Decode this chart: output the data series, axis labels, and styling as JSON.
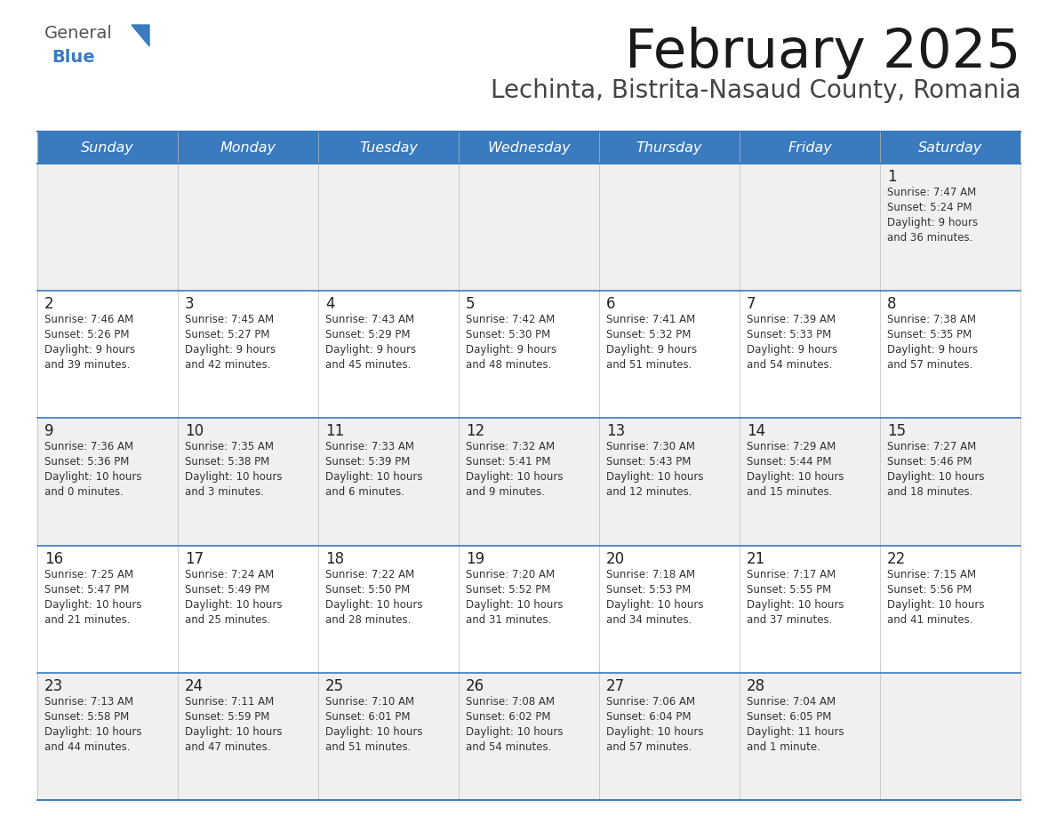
{
  "title": "February 2025",
  "subtitle": "Lechinta, Bistrita-Nasaud County, Romania",
  "header_color": "#3a7abf",
  "header_text_color": "#ffffff",
  "odd_row_color": "#f0f0f0",
  "even_row_color": "#ffffff",
  "border_color": "#3a7abf",
  "text_color": "#333333",
  "days_of_week": [
    "Sunday",
    "Monday",
    "Tuesday",
    "Wednesday",
    "Thursday",
    "Friday",
    "Saturday"
  ],
  "calendar_data": [
    [
      {
        "day": null,
        "sunrise": null,
        "sunset": null,
        "daylight": null
      },
      {
        "day": null,
        "sunrise": null,
        "sunset": null,
        "daylight": null
      },
      {
        "day": null,
        "sunrise": null,
        "sunset": null,
        "daylight": null
      },
      {
        "day": null,
        "sunrise": null,
        "sunset": null,
        "daylight": null
      },
      {
        "day": null,
        "sunrise": null,
        "sunset": null,
        "daylight": null
      },
      {
        "day": null,
        "sunrise": null,
        "sunset": null,
        "daylight": null
      },
      {
        "day": 1,
        "sunrise": "7:47 AM",
        "sunset": "5:24 PM",
        "daylight": "9 hours\nand 36 minutes."
      }
    ],
    [
      {
        "day": 2,
        "sunrise": "7:46 AM",
        "sunset": "5:26 PM",
        "daylight": "9 hours\nand 39 minutes."
      },
      {
        "day": 3,
        "sunrise": "7:45 AM",
        "sunset": "5:27 PM",
        "daylight": "9 hours\nand 42 minutes."
      },
      {
        "day": 4,
        "sunrise": "7:43 AM",
        "sunset": "5:29 PM",
        "daylight": "9 hours\nand 45 minutes."
      },
      {
        "day": 5,
        "sunrise": "7:42 AM",
        "sunset": "5:30 PM",
        "daylight": "9 hours\nand 48 minutes."
      },
      {
        "day": 6,
        "sunrise": "7:41 AM",
        "sunset": "5:32 PM",
        "daylight": "9 hours\nand 51 minutes."
      },
      {
        "day": 7,
        "sunrise": "7:39 AM",
        "sunset": "5:33 PM",
        "daylight": "9 hours\nand 54 minutes."
      },
      {
        "day": 8,
        "sunrise": "7:38 AM",
        "sunset": "5:35 PM",
        "daylight": "9 hours\nand 57 minutes."
      }
    ],
    [
      {
        "day": 9,
        "sunrise": "7:36 AM",
        "sunset": "5:36 PM",
        "daylight": "10 hours\nand 0 minutes."
      },
      {
        "day": 10,
        "sunrise": "7:35 AM",
        "sunset": "5:38 PM",
        "daylight": "10 hours\nand 3 minutes."
      },
      {
        "day": 11,
        "sunrise": "7:33 AM",
        "sunset": "5:39 PM",
        "daylight": "10 hours\nand 6 minutes."
      },
      {
        "day": 12,
        "sunrise": "7:32 AM",
        "sunset": "5:41 PM",
        "daylight": "10 hours\nand 9 minutes."
      },
      {
        "day": 13,
        "sunrise": "7:30 AM",
        "sunset": "5:43 PM",
        "daylight": "10 hours\nand 12 minutes."
      },
      {
        "day": 14,
        "sunrise": "7:29 AM",
        "sunset": "5:44 PM",
        "daylight": "10 hours\nand 15 minutes."
      },
      {
        "day": 15,
        "sunrise": "7:27 AM",
        "sunset": "5:46 PM",
        "daylight": "10 hours\nand 18 minutes."
      }
    ],
    [
      {
        "day": 16,
        "sunrise": "7:25 AM",
        "sunset": "5:47 PM",
        "daylight": "10 hours\nand 21 minutes."
      },
      {
        "day": 17,
        "sunrise": "7:24 AM",
        "sunset": "5:49 PM",
        "daylight": "10 hours\nand 25 minutes."
      },
      {
        "day": 18,
        "sunrise": "7:22 AM",
        "sunset": "5:50 PM",
        "daylight": "10 hours\nand 28 minutes."
      },
      {
        "day": 19,
        "sunrise": "7:20 AM",
        "sunset": "5:52 PM",
        "daylight": "10 hours\nand 31 minutes."
      },
      {
        "day": 20,
        "sunrise": "7:18 AM",
        "sunset": "5:53 PM",
        "daylight": "10 hours\nand 34 minutes."
      },
      {
        "day": 21,
        "sunrise": "7:17 AM",
        "sunset": "5:55 PM",
        "daylight": "10 hours\nand 37 minutes."
      },
      {
        "day": 22,
        "sunrise": "7:15 AM",
        "sunset": "5:56 PM",
        "daylight": "10 hours\nand 41 minutes."
      }
    ],
    [
      {
        "day": 23,
        "sunrise": "7:13 AM",
        "sunset": "5:58 PM",
        "daylight": "10 hours\nand 44 minutes."
      },
      {
        "day": 24,
        "sunrise": "7:11 AM",
        "sunset": "5:59 PM",
        "daylight": "10 hours\nand 47 minutes."
      },
      {
        "day": 25,
        "sunrise": "7:10 AM",
        "sunset": "6:01 PM",
        "daylight": "10 hours\nand 51 minutes."
      },
      {
        "day": 26,
        "sunrise": "7:08 AM",
        "sunset": "6:02 PM",
        "daylight": "10 hours\nand 54 minutes."
      },
      {
        "day": 27,
        "sunrise": "7:06 AM",
        "sunset": "6:04 PM",
        "daylight": "10 hours\nand 57 minutes."
      },
      {
        "day": 28,
        "sunrise": "7:04 AM",
        "sunset": "6:05 PM",
        "daylight": "11 hours\nand 1 minute."
      },
      {
        "day": null,
        "sunrise": null,
        "sunset": null,
        "daylight": null
      }
    ]
  ],
  "logo_color": "#3a7abf",
  "logo_gray": "#555555"
}
